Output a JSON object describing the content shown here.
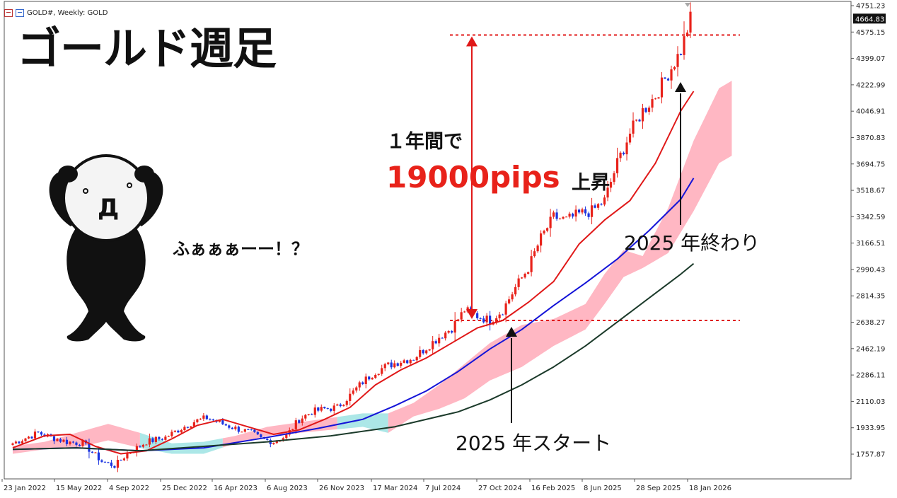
{
  "header": {
    "symbol": "GOLD#, Weekly:  GOLD"
  },
  "headline": "ゴールド週足",
  "callout": {
    "line1": "１年間で",
    "big_number": "19000pips",
    "suffix": "上昇",
    "exclaim": "ふぁぁぁーー！？"
  },
  "annotations": {
    "start": "2025 年スタート",
    "end": "2025 年終わり"
  },
  "colors": {
    "bull": "#e8221a",
    "bear": "#1a33e0",
    "ma_fast": "#e01818",
    "ma_mid": "#1414d8",
    "ma_slow": "#1b3a2a",
    "cloud_bull": "#ffb3c0",
    "cloud_bear": "#a8e6e6",
    "level_line": "#e01818",
    "price_label_bg": "#111111"
  },
  "chart_data": {
    "type": "candlestick",
    "title": "GOLD#, Weekly",
    "ylim": [
      1670,
      4751.23
    ],
    "y_ticks": [
      4751.23,
      4575.15,
      4399.07,
      4222.99,
      4046.91,
      3870.83,
      3694.75,
      3518.67,
      3342.59,
      3166.51,
      2990.43,
      2814.35,
      2638.27,
      2462.19,
      2286.11,
      2110.03,
      1933.95,
      1757.87
    ],
    "current_price": 4664.83,
    "x_tick_labels": [
      "23 Jan 2022",
      "15 May 2022",
      "4 Sep 2022",
      "25 Dec 2022",
      "16 Apr 2023",
      "6 Aug 2023",
      "26 Nov 2023",
      "17 Mar 2024",
      "7 Jul 2024",
      "27 Oct 2024",
      "16 Feb 2025",
      "8 Jun 2025",
      "28 Sep 2025",
      "18 Jan 2026"
    ],
    "levels": {
      "start_2025": 2650,
      "end_2025": 4555
    },
    "anchors": [
      [
        0,
        1830
      ],
      [
        8,
        1900
      ],
      [
        12,
        1870
      ],
      [
        17,
        1840
      ],
      [
        22,
        1830
      ],
      [
        28,
        1710
      ],
      [
        32,
        1680
      ],
      [
        36,
        1760
      ],
      [
        42,
        1840
      ],
      [
        48,
        1870
      ],
      [
        52,
        1920
      ],
      [
        57,
        1975
      ],
      [
        61,
        2000
      ],
      [
        66,
        1960
      ],
      [
        70,
        1930
      ],
      [
        75,
        1900
      ],
      [
        78,
        1860
      ],
      [
        82,
        1840
      ],
      [
        86,
        1880
      ],
      [
        90,
        1990
      ],
      [
        94,
        2040
      ],
      [
        98,
        2060
      ],
      [
        102,
        2070
      ],
      [
        106,
        2150
      ],
      [
        110,
        2240
      ],
      [
        114,
        2310
      ],
      [
        118,
        2350
      ],
      [
        122,
        2380
      ],
      [
        126,
        2400
      ],
      [
        130,
        2470
      ],
      [
        134,
        2540
      ],
      [
        138,
        2600
      ],
      [
        142,
        2720
      ],
      [
        146,
        2680
      ],
      [
        150,
        2650
      ],
      [
        154,
        2720
      ],
      [
        158,
        2870
      ],
      [
        162,
        3000
      ],
      [
        166,
        3200
      ],
      [
        170,
        3340
      ],
      [
        174,
        3320
      ],
      [
        178,
        3360
      ],
      [
        182,
        3380
      ],
      [
        186,
        3450
      ],
      [
        190,
        3700
      ],
      [
        194,
        3900
      ],
      [
        198,
        4050
      ],
      [
        202,
        4150
      ],
      [
        206,
        4300
      ],
      [
        210,
        4450
      ],
      [
        213,
        4665
      ]
    ],
    "moving_averages": [
      {
        "name": "MA fast",
        "color": "#e01818",
        "points": [
          [
            0,
            1800
          ],
          [
            10,
            1880
          ],
          [
            18,
            1890
          ],
          [
            26,
            1810
          ],
          [
            34,
            1760
          ],
          [
            42,
            1780
          ],
          [
            50,
            1860
          ],
          [
            58,
            1950
          ],
          [
            66,
            1990
          ],
          [
            74,
            1940
          ],
          [
            82,
            1890
          ],
          [
            90,
            1920
          ],
          [
            98,
            1990
          ],
          [
            106,
            2070
          ],
          [
            114,
            2220
          ],
          [
            122,
            2320
          ],
          [
            130,
            2400
          ],
          [
            138,
            2500
          ],
          [
            146,
            2600
          ],
          [
            154,
            2650
          ],
          [
            162,
            2770
          ],
          [
            170,
            2910
          ],
          [
            178,
            3160
          ],
          [
            186,
            3320
          ],
          [
            194,
            3450
          ],
          [
            202,
            3700
          ],
          [
            210,
            4050
          ],
          [
            214,
            4180
          ]
        ]
      },
      {
        "name": "MA mid",
        "color": "#1414d8",
        "points": [
          [
            0,
            1790
          ],
          [
            20,
            1800
          ],
          [
            40,
            1780
          ],
          [
            60,
            1800
          ],
          [
            80,
            1870
          ],
          [
            96,
            1930
          ],
          [
            110,
            1990
          ],
          [
            120,
            2080
          ],
          [
            130,
            2180
          ],
          [
            140,
            2310
          ],
          [
            150,
            2460
          ],
          [
            160,
            2590
          ],
          [
            170,
            2750
          ],
          [
            180,
            2900
          ],
          [
            190,
            3060
          ],
          [
            200,
            3250
          ],
          [
            210,
            3460
          ],
          [
            214,
            3600
          ]
        ]
      },
      {
        "name": "MA slow",
        "color": "#1b3a2a",
        "points": [
          [
            0,
            1790
          ],
          [
            20,
            1800
          ],
          [
            40,
            1780
          ],
          [
            60,
            1810
          ],
          [
            80,
            1840
          ],
          [
            100,
            1880
          ],
          [
            120,
            1940
          ],
          [
            140,
            2040
          ],
          [
            150,
            2120
          ],
          [
            160,
            2220
          ],
          [
            170,
            2340
          ],
          [
            180,
            2480
          ],
          [
            190,
            2640
          ],
          [
            200,
            2800
          ],
          [
            210,
            2960
          ],
          [
            214,
            3030
          ]
        ]
      }
    ],
    "cloud": [
      {
        "i": 0,
        "a": 1760,
        "b": 1810
      },
      {
        "i": 10,
        "a": 1790,
        "b": 1840
      },
      {
        "i": 20,
        "a": 1800,
        "b": 1900
      },
      {
        "i": 30,
        "a": 1850,
        "b": 1960
      },
      {
        "i": 40,
        "a": 1800,
        "b": 1900
      },
      {
        "i": 50,
        "a": 1760,
        "b": 1830
      },
      {
        "i": 60,
        "a": 1760,
        "b": 1840
      },
      {
        "i": 70,
        "a": 1830,
        "b": 1880
      },
      {
        "i": 80,
        "a": 1880,
        "b": 1940
      },
      {
        "i": 90,
        "a": 1900,
        "b": 1970
      },
      {
        "i": 100,
        "a": 1920,
        "b": 2000
      },
      {
        "i": 110,
        "a": 1940,
        "b": 2030
      },
      {
        "i": 118,
        "a": 1900,
        "b": 2030
      },
      {
        "i": 126,
        "a": 2010,
        "b": 2100
      },
      {
        "i": 134,
        "a": 2060,
        "b": 2220
      },
      {
        "i": 142,
        "a": 2130,
        "b": 2360
      },
      {
        "i": 150,
        "a": 2250,
        "b": 2500
      },
      {
        "i": 160,
        "a": 2340,
        "b": 2620
      },
      {
        "i": 170,
        "a": 2480,
        "b": 2660
      },
      {
        "i": 180,
        "a": 2590,
        "b": 2760
      },
      {
        "i": 186,
        "a": 2760,
        "b": 2960
      },
      {
        "i": 192,
        "a": 2940,
        "b": 3120
      },
      {
        "i": 198,
        "a": 3000,
        "b": 3080
      },
      {
        "i": 206,
        "a": 3100,
        "b": 3400
      },
      {
        "i": 214,
        "a": 3380,
        "b": 3850
      },
      {
        "i": 222,
        "a": 3700,
        "b": 4200
      },
      {
        "i": 226,
        "a": 3750,
        "b": 4250
      }
    ]
  }
}
